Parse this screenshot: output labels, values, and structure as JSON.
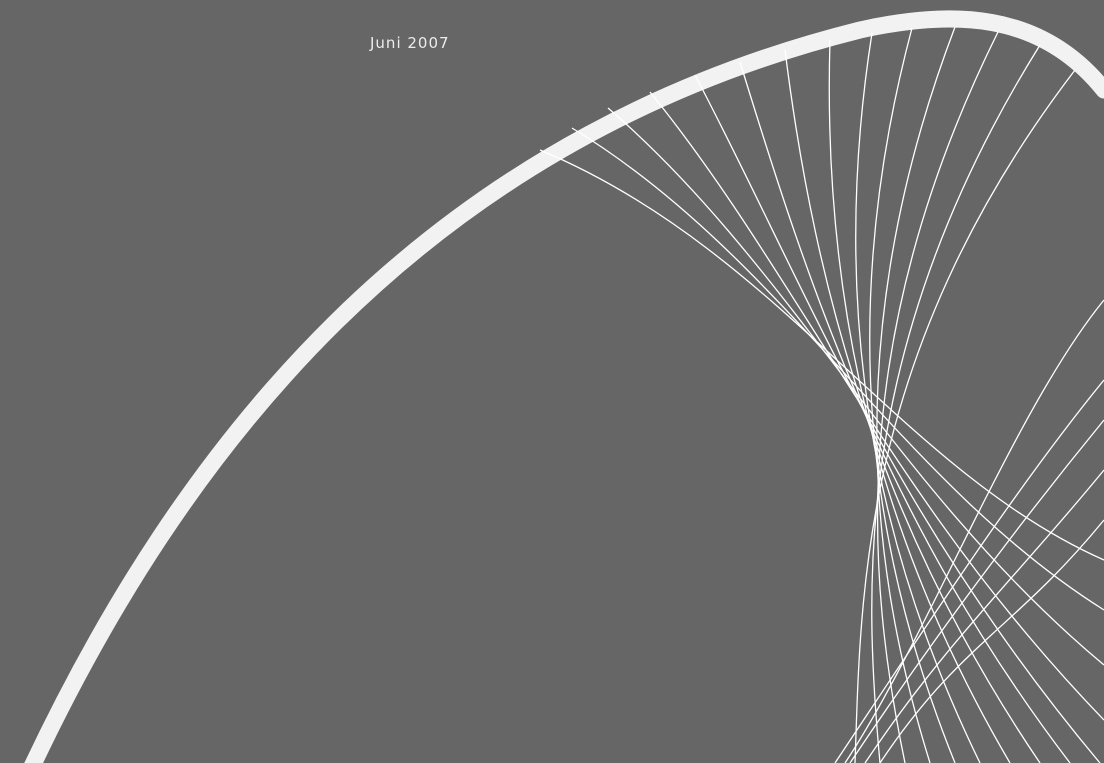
{
  "cover": {
    "date_label": "Juni 2007",
    "colors": {
      "background": "#666666",
      "ring": "#f2f2f2",
      "lines": "#ffffff",
      "text": "#ececec"
    },
    "graphic": {
      "ring_icon": "thick-arc-ring-icon",
      "lines_icon": "string-art-curve-lines-icon"
    }
  }
}
